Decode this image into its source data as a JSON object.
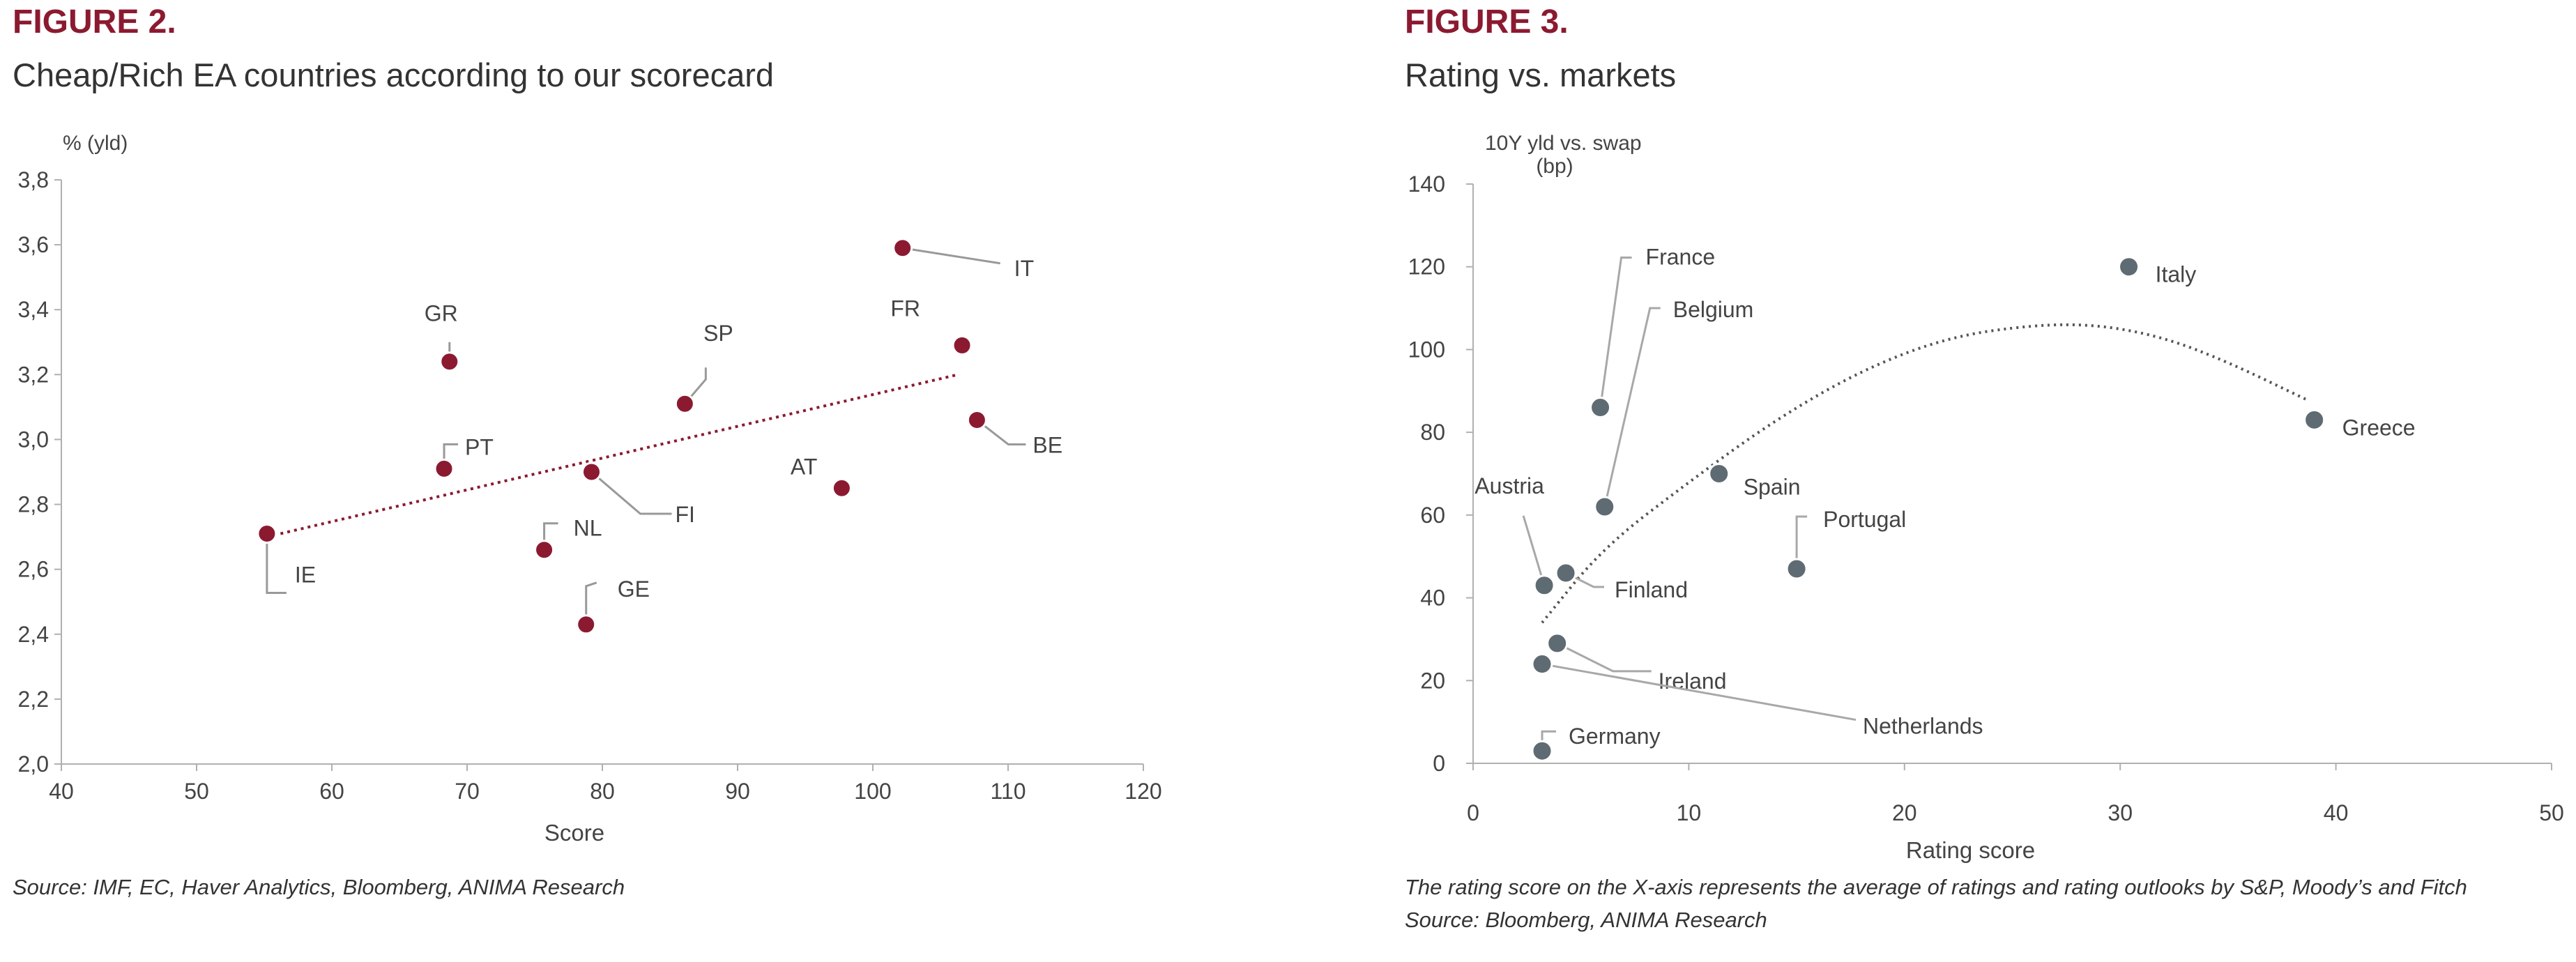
{
  "figures": [
    {
      "label": "FIGURE 2.",
      "title": "Cheap/Rich EA countries according to our scorecard",
      "note": "Source: IMF, EC, Haver Analytics, Bloomberg, ANIMA Research"
    },
    {
      "label": "FIGURE 3.",
      "title": "Rating vs. markets",
      "note1": "The rating score on the X-axis represents the average of ratings and rating outlooks by S&P, Moody’s and Fitch",
      "note2": "Source: Bloomberg, ANIMA Research"
    }
  ],
  "colors": {
    "accent": "#8b1a30",
    "dot2": "#5f6b73",
    "text": "#333333",
    "axis": "#b0b0b0"
  },
  "chart_data": [
    {
      "type": "scatter",
      "ylabel": "% (yld)",
      "xlabel": "Score",
      "xlim": [
        40,
        120
      ],
      "ylim": [
        2.0,
        3.8
      ],
      "xticks": [
        "40",
        "50",
        "60",
        "70",
        "80",
        "90",
        "100",
        "110",
        "120"
      ],
      "yticks": [
        "2,0",
        "2,2",
        "2,4",
        "2,6",
        "2,8",
        "3,0",
        "3,2",
        "3,4",
        "3,6",
        "3,8"
      ],
      "points": [
        {
          "label": "IT",
          "x": 102.2,
          "y": 3.59
        },
        {
          "label": "FR",
          "x": 106.6,
          "y": 3.29
        },
        {
          "label": "BE",
          "x": 107.7,
          "y": 3.06
        },
        {
          "label": "GR",
          "x": 68.7,
          "y": 3.24
        },
        {
          "label": "SP",
          "x": 86.1,
          "y": 3.11
        },
        {
          "label": "PT",
          "x": 68.3,
          "y": 2.91
        },
        {
          "label": "FI",
          "x": 79.2,
          "y": 2.9
        },
        {
          "label": "AT",
          "x": 97.7,
          "y": 2.85
        },
        {
          "label": "IE",
          "x": 55.2,
          "y": 2.71
        },
        {
          "label": "NL",
          "x": 75.7,
          "y": 2.66
        },
        {
          "label": "GE",
          "x": 78.8,
          "y": 2.43
        }
      ],
      "trendline": {
        "x": [
          55.2,
          106.3
        ],
        "y": [
          2.7,
          3.2
        ]
      },
      "grid": false
    },
    {
      "type": "scatter",
      "ylabel": "10Y yld vs. swap\n(bp)",
      "xlabel": "Rating score",
      "xlim": [
        0,
        50
      ],
      "ylim": [
        0,
        140
      ],
      "xticks": [
        "0",
        "10",
        "20",
        "30",
        "40",
        "50"
      ],
      "yticks": [
        "0",
        "20",
        "40",
        "60",
        "80",
        "100",
        "120",
        "140"
      ],
      "points": [
        {
          "label": "France",
          "x": 5.9,
          "y": 86
        },
        {
          "label": "Belgium",
          "x": 6.1,
          "y": 62
        },
        {
          "label": "Austria",
          "x": 3.3,
          "y": 43
        },
        {
          "label": "Finland",
          "x": 4.3,
          "y": 46
        },
        {
          "label": "Spain",
          "x": 11.4,
          "y": 70
        },
        {
          "label": "Portugal",
          "x": 15.0,
          "y": 47
        },
        {
          "label": "Italy",
          "x": 30.4,
          "y": 120
        },
        {
          "label": "Greece",
          "x": 39.0,
          "y": 83
        },
        {
          "label": "Ireland",
          "x": 3.9,
          "y": 29
        },
        {
          "label": "Netherlands",
          "x": 3.2,
          "y": 24
        },
        {
          "label": "Germany",
          "x": 3.2,
          "y": 3
        }
      ],
      "trendline": {
        "x": [
          3.2,
          6,
          10,
          14,
          18,
          22,
          26,
          29,
          32,
          35,
          38.6
        ],
        "y": [
          34,
          52,
          68,
          83,
          95,
          103,
          106,
          106,
          103,
          97,
          88
        ]
      },
      "grid": false
    }
  ]
}
